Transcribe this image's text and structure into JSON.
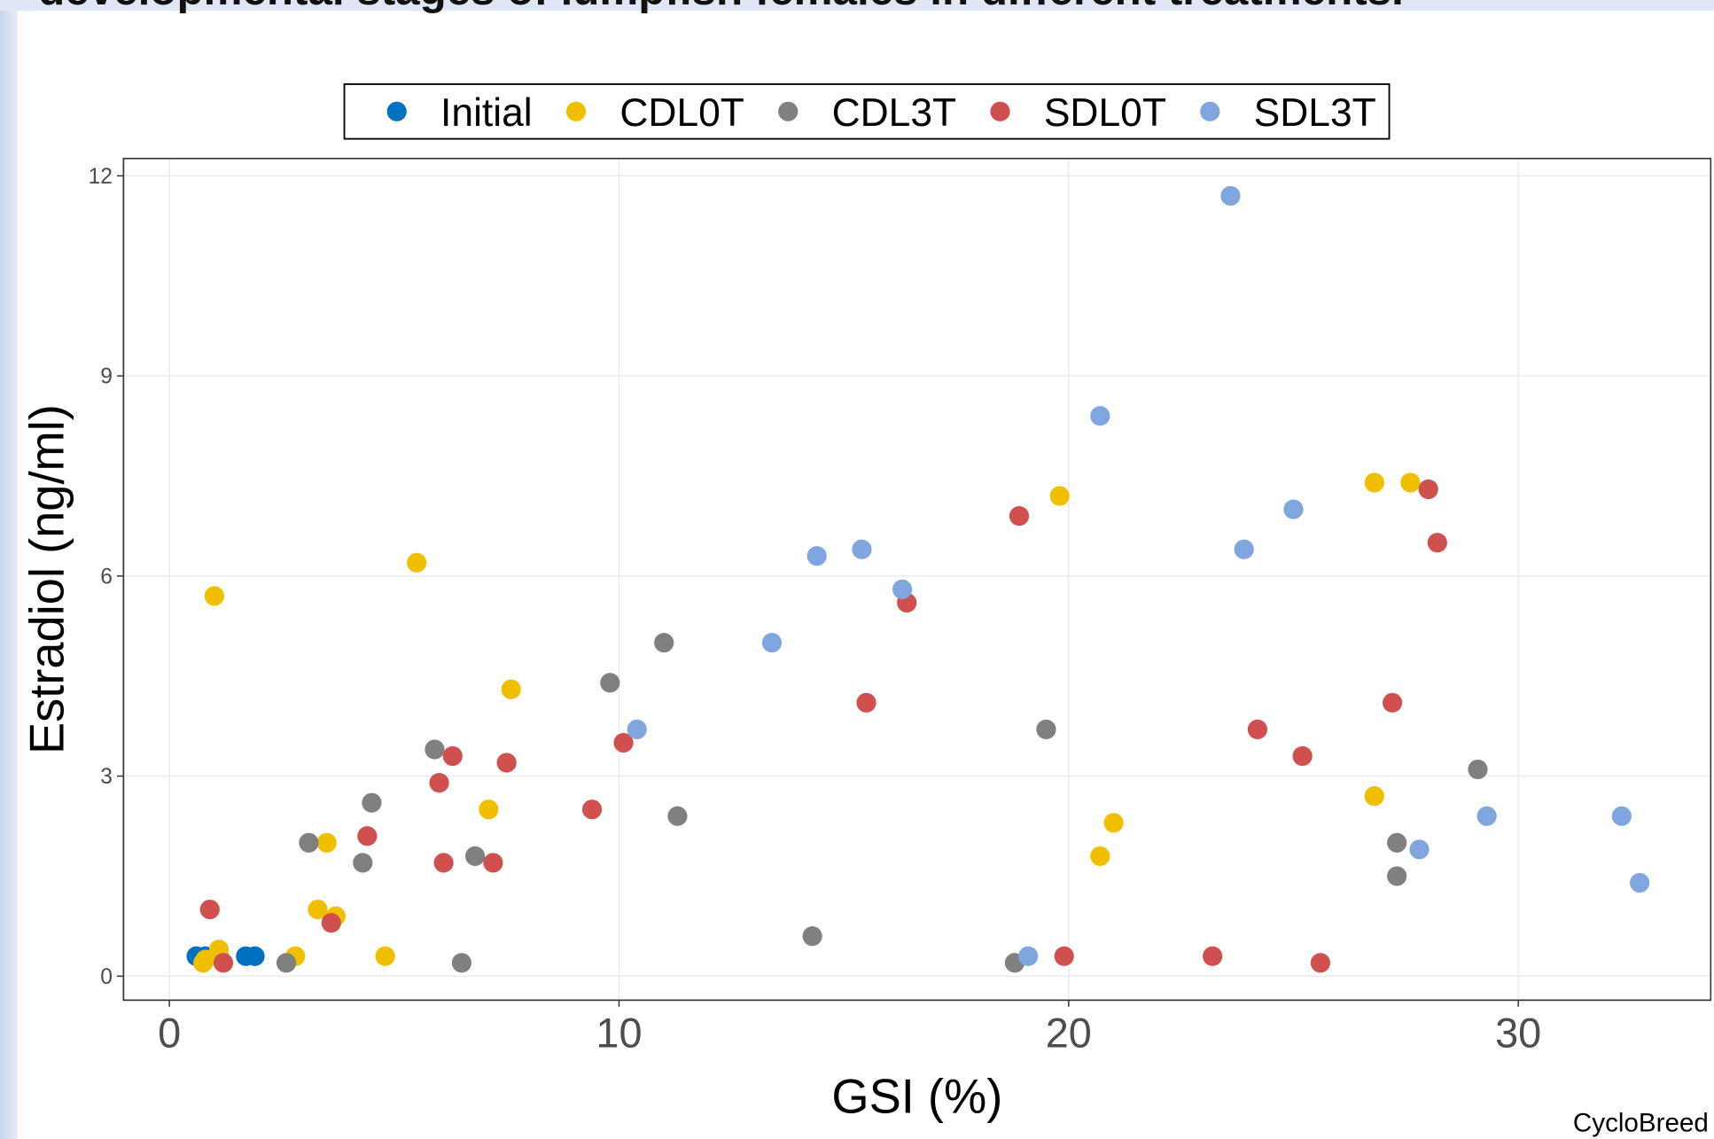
{
  "chart_data": {
    "type": "scatter",
    "title": "developmental stages of lumpfish females in different treatments.",
    "x_label": "GSI (%)",
    "y_label": "Estradiol (ng/ml)",
    "caption": "CycloBreed",
    "xlim": [
      -1.02,
      34.28
    ],
    "ylim": [
      -0.36,
      12.26
    ],
    "xticks": [
      0,
      10,
      20,
      30
    ],
    "yticks": [
      0,
      3,
      6,
      9,
      12
    ],
    "grid": true,
    "legend": "top",
    "series": [
      {
        "name": "Initial",
        "color": "#0070c0",
        "x": [
          0.6,
          0.8,
          1.1,
          1.7,
          1.9
        ],
        "values": [
          0.3,
          0.3,
          0.3,
          0.3,
          0.3
        ]
      },
      {
        "name": "CDL0T",
        "color": "#efbf00",
        "x": [
          1.0,
          5.5,
          7.6,
          7.1,
          3.5,
          3.3,
          3.7,
          4.8,
          2.8,
          1.1,
          0.8,
          0.75,
          19.8,
          21.0,
          20.7,
          26.8,
          27.6,
          26.8
        ],
        "values": [
          5.7,
          6.2,
          4.3,
          2.5,
          2.0,
          1.0,
          0.9,
          0.3,
          0.3,
          0.4,
          0.25,
          0.2,
          7.2,
          2.3,
          1.8,
          7.4,
          7.4,
          2.7
        ]
      },
      {
        "name": "CDL3T",
        "color": "#808080",
        "x": [
          11.0,
          9.8,
          11.3,
          5.9,
          4.5,
          3.1,
          4.3,
          6.8,
          6.5,
          2.6,
          14.3,
          19.5,
          18.8,
          29.1,
          27.3,
          27.3
        ],
        "values": [
          5.0,
          4.4,
          2.4,
          3.4,
          2.6,
          2.0,
          1.7,
          1.8,
          0.2,
          0.2,
          0.6,
          3.7,
          0.2,
          3.1,
          2.0,
          1.5
        ]
      },
      {
        "name": "SDL0T",
        "color": "#d05050",
        "x": [
          18.9,
          16.4,
          15.5,
          10.1,
          9.4,
          6.3,
          6.0,
          7.5,
          4.4,
          6.1,
          7.2,
          0.9,
          3.6,
          1.2,
          19.9,
          23.2,
          25.6,
          24.2,
          25.2,
          27.2,
          28.0,
          28.2
        ],
        "values": [
          6.9,
          5.6,
          4.1,
          3.5,
          2.5,
          3.3,
          2.9,
          3.2,
          2.1,
          1.7,
          1.7,
          1.0,
          0.8,
          0.2,
          0.3,
          0.3,
          0.2,
          3.7,
          3.3,
          4.1,
          7.3,
          6.5
        ]
      },
      {
        "name": "SDL3T",
        "color": "#7fa6de",
        "x": [
          23.6,
          20.7,
          25.0,
          23.9,
          15.4,
          14.4,
          16.3,
          13.4,
          10.4,
          19.1,
          27.8,
          29.3,
          32.3,
          32.7
        ],
        "values": [
          11.7,
          8.4,
          7.0,
          6.4,
          6.4,
          6.3,
          5.8,
          5.0,
          3.7,
          0.3,
          1.9,
          2.4,
          2.4,
          1.4
        ]
      }
    ]
  }
}
